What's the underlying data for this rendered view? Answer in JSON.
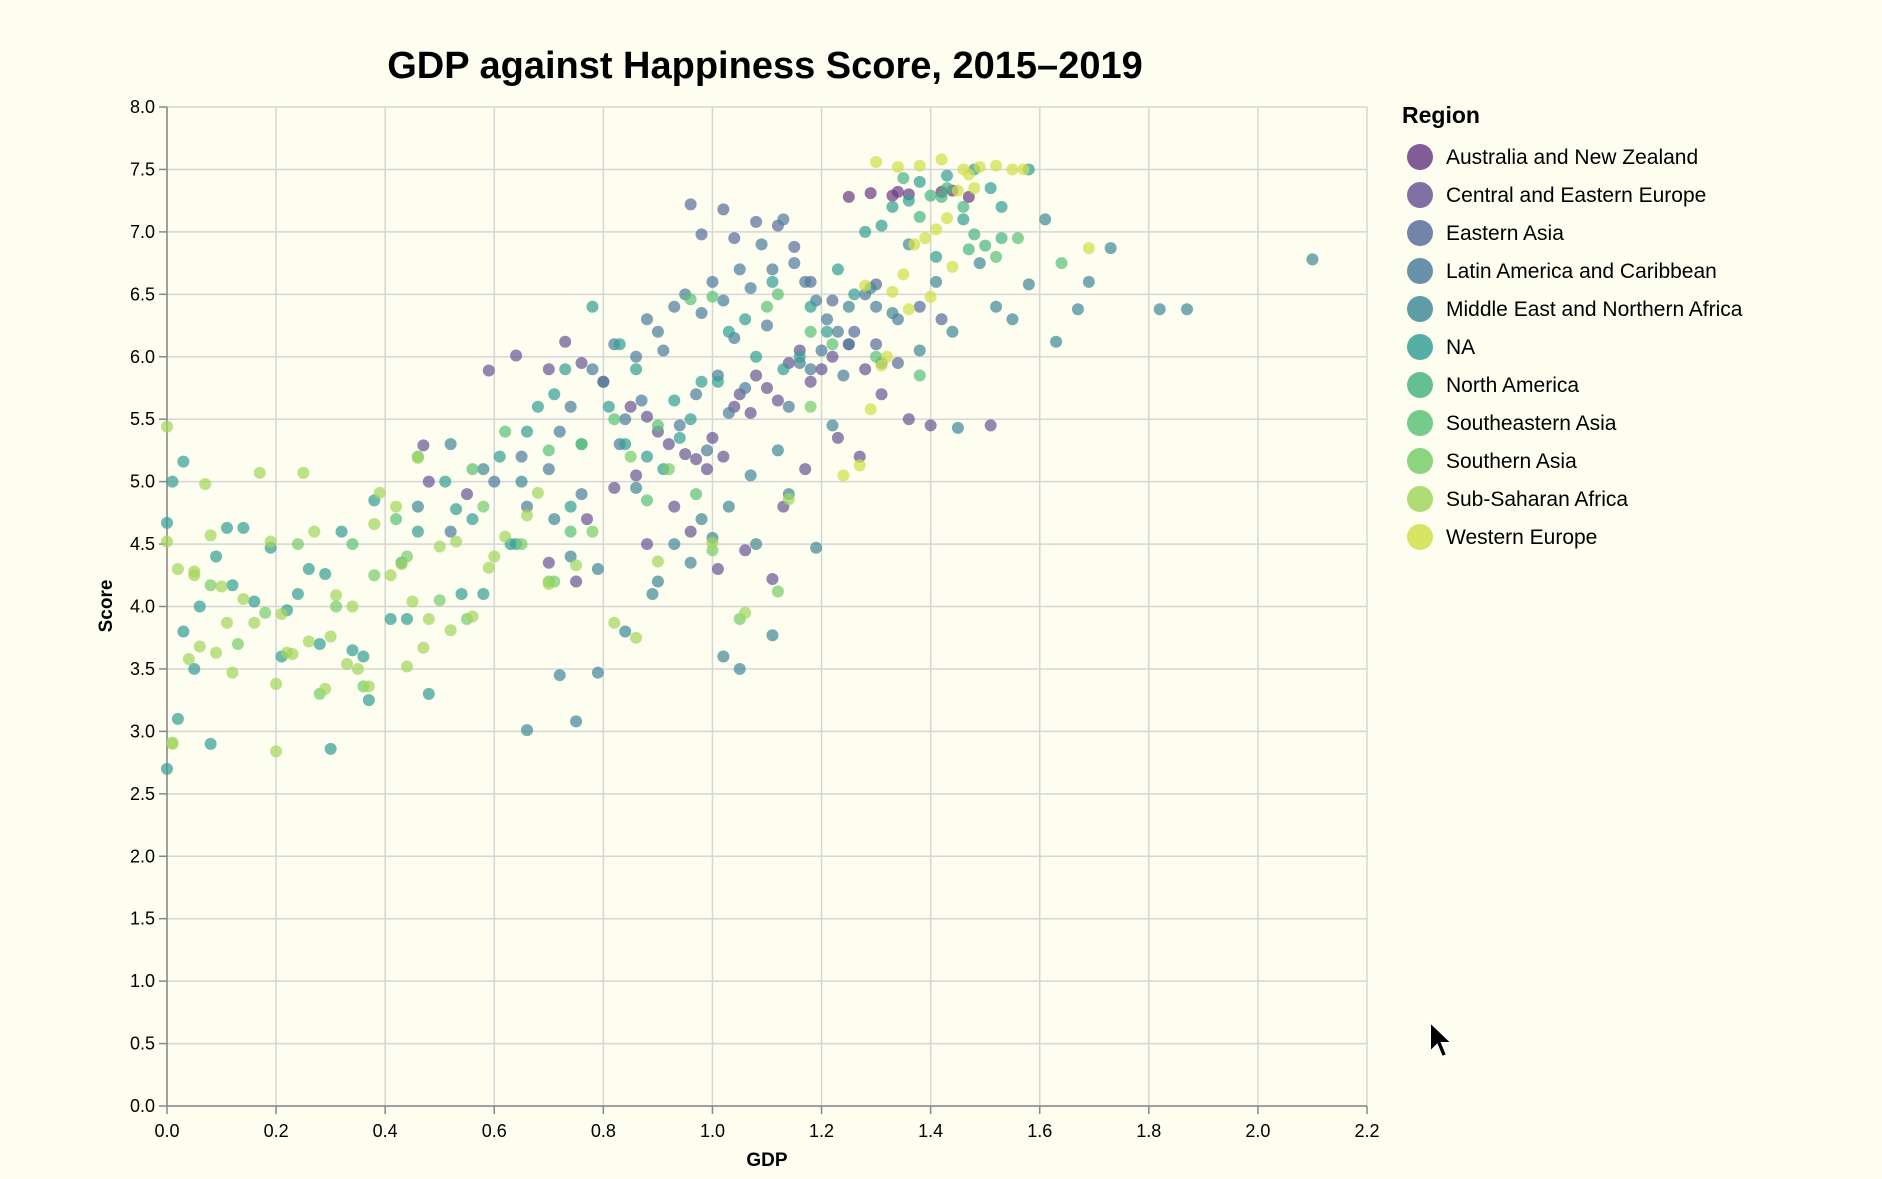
{
  "chart_data": {
    "type": "scatter",
    "title": "GDP against Happiness Score, 2015–2019",
    "xlabel": "GDP",
    "ylabel": "Score",
    "xlim": [
      0,
      2.2
    ],
    "ylim": [
      0,
      8
    ],
    "x_ticks": [
      "0.0",
      "0.2",
      "0.4",
      "0.6",
      "0.8",
      "1.0",
      "1.2",
      "1.4",
      "1.6",
      "1.8",
      "2.0",
      "2.2"
    ],
    "y_ticks": [
      "0.0",
      "0.5",
      "1.0",
      "1.5",
      "2.0",
      "2.5",
      "3.0",
      "3.5",
      "4.0",
      "4.5",
      "5.0",
      "5.5",
      "6.0",
      "6.5",
      "7.0",
      "7.5",
      "8.0"
    ],
    "grid": true,
    "legend_title": "Region",
    "legend_position": "right",
    "series": [
      {
        "name": "Australia and New Zealand",
        "color": "#6c3f84",
        "x": [
          1.25,
          1.29,
          1.33,
          1.34,
          1.36,
          1.42,
          1.44,
          1.47
        ],
        "y": [
          7.28,
          7.31,
          7.29,
          7.32,
          7.3,
          7.32,
          7.33,
          7.28
        ]
      },
      {
        "name": "Central and Eastern Europe",
        "color": "#6a5796",
        "x": [
          0.59,
          0.64,
          0.7,
          0.73,
          0.76,
          0.8,
          0.85,
          0.88,
          0.9,
          0.92,
          0.95,
          0.97,
          0.99,
          1.0,
          1.02,
          1.04,
          1.05,
          1.07,
          1.08,
          1.1,
          1.12,
          1.14,
          1.16,
          1.18,
          1.2,
          1.22,
          1.25,
          1.28,
          1.31,
          1.36,
          1.4,
          1.51,
          0.47,
          0.48,
          0.55,
          0.77,
          0.82,
          0.86,
          0.93,
          1.01,
          1.06,
          1.11,
          0.7,
          0.75,
          0.88,
          0.96,
          1.13,
          1.17,
          1.23,
          1.27
        ],
        "y": [
          5.89,
          6.01,
          5.9,
          6.12,
          5.95,
          5.8,
          5.6,
          5.52,
          5.4,
          5.3,
          5.22,
          5.18,
          5.1,
          5.35,
          5.2,
          5.6,
          5.7,
          5.55,
          5.85,
          5.75,
          5.65,
          5.95,
          6.05,
          5.8,
          5.9,
          6.0,
          6.1,
          5.9,
          5.7,
          5.5,
          5.45,
          5.45,
          5.29,
          5.0,
          4.9,
          4.7,
          4.95,
          5.05,
          4.8,
          4.3,
          4.45,
          4.22,
          4.35,
          4.2,
          4.5,
          4.6,
          4.8,
          5.1,
          5.35,
          5.2
        ]
      },
      {
        "name": "Eastern Asia",
        "color": "#5a6f9c",
        "x": [
          0.96,
          0.98,
          1.02,
          1.04,
          1.08,
          1.12,
          1.15,
          1.18,
          1.22,
          1.26,
          1.3,
          1.34,
          1.38,
          1.3,
          1.42
        ],
        "y": [
          7.22,
          6.98,
          7.18,
          6.95,
          7.08,
          7.05,
          6.88,
          6.6,
          6.45,
          6.2,
          6.1,
          5.95,
          6.4,
          6.58,
          6.3
        ]
      },
      {
        "name": "Latin America and Caribbean",
        "color": "#4d7e9c",
        "x": [
          0.6,
          0.65,
          0.72,
          0.78,
          0.82,
          0.86,
          0.88,
          0.9,
          0.93,
          0.95,
          0.98,
          1.0,
          1.02,
          1.05,
          1.07,
          1.09,
          1.11,
          1.13,
          1.15,
          1.17,
          1.19,
          1.21,
          1.23,
          1.25,
          1.28,
          1.3,
          1.34,
          0.74,
          0.8,
          0.84,
          0.91,
          0.97,
          1.01,
          1.04,
          1.1,
          1.16,
          1.2,
          0.76,
          0.83,
          0.87,
          0.94,
          0.99,
          1.03,
          1.06,
          1.14,
          1.18,
          1.24,
          0.52,
          0.66,
          0.7
        ],
        "y": [
          5.0,
          5.2,
          5.4,
          5.9,
          6.1,
          6.0,
          6.3,
          6.2,
          6.4,
          6.5,
          6.35,
          6.6,
          6.45,
          6.7,
          6.55,
          6.9,
          6.7,
          7.1,
          6.75,
          6.6,
          6.45,
          6.3,
          6.2,
          6.1,
          6.5,
          6.4,
          6.3,
          5.6,
          5.8,
          5.5,
          6.05,
          5.7,
          5.85,
          6.15,
          6.25,
          5.95,
          6.05,
          4.9,
          5.3,
          5.65,
          5.45,
          5.25,
          5.55,
          5.75,
          5.6,
          5.9,
          5.85,
          4.6,
          4.8,
          5.1
        ]
      },
      {
        "name": "Middle East and Northern Africa",
        "color": "#428b99",
        "x": [
          0.46,
          0.52,
          0.58,
          0.65,
          0.71,
          0.74,
          0.79,
          0.84,
          0.89,
          0.93,
          0.98,
          1.02,
          1.05,
          1.08,
          1.11,
          1.14,
          1.19,
          1.25,
          1.29,
          1.33,
          1.36,
          1.41,
          1.44,
          1.49,
          1.52,
          1.55,
          1.58,
          1.61,
          1.63,
          1.67,
          1.69,
          1.73,
          1.82,
          1.87,
          2.1,
          0.66,
          0.75,
          0.79,
          0.9,
          0.96,
          1.0,
          1.03,
          1.07,
          1.12,
          1.22,
          1.31,
          1.38,
          1.45,
          0.72,
          0.86
        ],
        "y": [
          4.8,
          5.3,
          5.1,
          5.0,
          4.7,
          4.4,
          4.3,
          3.8,
          4.1,
          4.5,
          4.7,
          3.6,
          3.5,
          4.5,
          3.77,
          4.9,
          4.47,
          6.4,
          6.55,
          6.35,
          6.9,
          6.6,
          6.2,
          6.75,
          6.4,
          6.3,
          6.58,
          7.1,
          6.12,
          6.38,
          6.6,
          6.87,
          6.38,
          6.38,
          6.78,
          3.01,
          3.08,
          3.47,
          4.2,
          4.35,
          4.55,
          4.8,
          5.05,
          5.25,
          5.45,
          5.95,
          6.05,
          5.43,
          3.45,
          4.95
        ]
      },
      {
        "name": "NA",
        "color": "#36a095",
        "x": [
          0.0,
          0.02,
          0.03,
          0.06,
          0.09,
          0.12,
          0.16,
          0.21,
          0.26,
          0.3,
          0.34,
          0.38,
          0.43,
          0.48,
          0.53,
          0.58,
          0.63,
          0.68,
          0.73,
          0.78,
          0.83,
          0.88,
          0.93,
          0.98,
          1.03,
          1.08,
          1.13,
          1.18,
          1.23,
          1.28,
          1.33,
          1.38,
          1.43,
          1.48,
          1.53,
          1.58,
          0.01,
          0.05,
          0.11,
          0.19,
          0.24,
          0.28,
          0.32,
          0.36,
          0.41,
          0.46,
          0.51,
          0.56,
          0.61,
          0.66,
          0.71,
          0.76,
          0.81,
          0.86,
          0.91,
          0.96,
          1.01,
          1.06,
          1.11,
          1.16,
          1.21,
          1.26,
          1.31,
          1.36,
          1.41,
          1.46,
          1.51,
          0.0,
          0.03,
          0.08,
          0.14,
          0.22,
          0.29,
          0.37,
          0.44,
          0.54,
          0.64,
          0.74,
          0.84,
          0.94
        ],
        "y": [
          2.7,
          3.1,
          5.16,
          4.0,
          4.4,
          4.17,
          4.04,
          3.6,
          4.3,
          2.86,
          3.65,
          4.85,
          4.35,
          3.3,
          4.78,
          4.1,
          4.5,
          5.6,
          5.9,
          6.4,
          6.1,
          5.2,
          5.65,
          5.8,
          6.2,
          6.0,
          5.9,
          6.4,
          6.7,
          7.0,
          7.2,
          7.4,
          7.45,
          7.5,
          7.2,
          7.5,
          5.0,
          3.5,
          4.63,
          4.47,
          4.1,
          3.7,
          4.6,
          3.6,
          3.9,
          4.6,
          5.0,
          4.7,
          5.2,
          5.4,
          5.7,
          5.3,
          5.6,
          5.9,
          5.1,
          5.5,
          5.8,
          6.3,
          6.6,
          6.0,
          6.2,
          6.5,
          7.05,
          7.25,
          6.8,
          7.1,
          7.35,
          4.67,
          3.8,
          2.9,
          4.63,
          3.97,
          4.26,
          3.25,
          3.9,
          4.1,
          4.5,
          4.8,
          5.3,
          5.35
        ]
      },
      {
        "name": "North America",
        "color": "#4ab485",
        "x": [
          1.35,
          1.38,
          1.4,
          1.43,
          1.46,
          1.48,
          1.5,
          1.53,
          1.42,
          1.47
        ],
        "y": [
          7.43,
          7.12,
          7.29,
          7.35,
          7.2,
          6.98,
          6.89,
          6.95,
          7.28,
          6.86
        ]
      },
      {
        "name": "Southeastern Asia",
        "color": "#5cc27a",
        "x": [
          0.46,
          0.56,
          0.62,
          0.7,
          0.76,
          0.82,
          0.9,
          0.96,
          1.0,
          1.1,
          1.12,
          1.18,
          1.22,
          1.3,
          1.38,
          1.52,
          1.56,
          1.64,
          0.34,
          0.42,
          0.74,
          0.88,
          0.97
        ],
        "y": [
          5.2,
          5.1,
          5.4,
          5.25,
          5.3,
          5.5,
          5.45,
          6.46,
          6.48,
          6.4,
          6.5,
          6.2,
          6.1,
          6.0,
          5.85,
          6.8,
          6.95,
          6.75,
          4.5,
          4.7,
          4.6,
          4.85,
          4.9
        ]
      },
      {
        "name": "Southern Asia",
        "color": "#78cc6c",
        "x": [
          0.08,
          0.13,
          0.18,
          0.24,
          0.31,
          0.38,
          0.44,
          0.5,
          0.58,
          0.65,
          0.71,
          0.78,
          0.85,
          0.92,
          1.0,
          1.05,
          1.12,
          1.18,
          0.28,
          0.36,
          0.55,
          0.7
        ],
        "y": [
          4.17,
          3.7,
          3.95,
          4.5,
          4.0,
          4.25,
          4.4,
          4.05,
          4.8,
          4.5,
          4.2,
          4.6,
          5.2,
          5.1,
          4.45,
          3.9,
          4.12,
          5.6,
          3.3,
          3.36,
          3.9,
          4.2
        ]
      },
      {
        "name": "Sub-Saharan Africa",
        "color": "#a3d65d",
        "x": [
          0.0,
          0.02,
          0.05,
          0.07,
          0.09,
          0.11,
          0.14,
          0.17,
          0.19,
          0.21,
          0.23,
          0.25,
          0.27,
          0.29,
          0.31,
          0.33,
          0.35,
          0.37,
          0.39,
          0.41,
          0.43,
          0.45,
          0.47,
          0.5,
          0.53,
          0.56,
          0.59,
          0.62,
          0.66,
          0.7,
          0.75,
          0.82,
          0.9,
          1.0,
          1.06,
          1.14,
          0.0,
          0.01,
          0.04,
          0.06,
          0.08,
          0.12,
          0.16,
          0.2,
          0.22,
          0.26,
          0.3,
          0.34,
          0.38,
          0.42,
          0.46,
          0.52,
          0.6,
          0.68,
          0.86,
          0.01,
          0.05,
          0.1,
          0.2,
          0.44,
          0.48
        ],
        "y": [
          5.44,
          4.3,
          4.28,
          4.98,
          3.63,
          3.87,
          4.06,
          5.07,
          4.52,
          3.94,
          3.62,
          5.07,
          4.6,
          3.34,
          4.09,
          3.54,
          3.5,
          3.36,
          4.91,
          4.25,
          4.34,
          4.04,
          3.67,
          4.48,
          4.52,
          3.92,
          4.31,
          4.56,
          4.73,
          4.18,
          4.33,
          3.87,
          4.36,
          4.51,
          3.95,
          4.86,
          4.52,
          2.9,
          3.58,
          3.68,
          4.57,
          3.47,
          3.87,
          2.84,
          3.63,
          3.72,
          3.76,
          4.0,
          4.66,
          4.8,
          5.19,
          3.81,
          4.4,
          4.91,
          3.75,
          2.91,
          4.25,
          4.16,
          3.38,
          3.52,
          3.9
        ]
      },
      {
        "name": "Western Europe",
        "color": "#d1df4b",
        "x": [
          1.24,
          1.27,
          1.29,
          1.31,
          1.33,
          1.35,
          1.37,
          1.39,
          1.41,
          1.43,
          1.45,
          1.47,
          1.49,
          1.52,
          1.55,
          1.57,
          1.69,
          1.3,
          1.34,
          1.38,
          1.42,
          1.46,
          1.4,
          1.36,
          1.32,
          1.44,
          1.48,
          1.28
        ],
        "y": [
          5.05,
          5.13,
          5.58,
          5.93,
          6.52,
          6.66,
          6.9,
          6.95,
          7.02,
          7.11,
          7.33,
          7.46,
          7.52,
          7.53,
          7.5,
          7.5,
          6.87,
          7.56,
          7.52,
          7.53,
          7.58,
          7.5,
          6.48,
          6.38,
          6.0,
          6.72,
          7.35,
          6.57
        ]
      }
    ]
  }
}
